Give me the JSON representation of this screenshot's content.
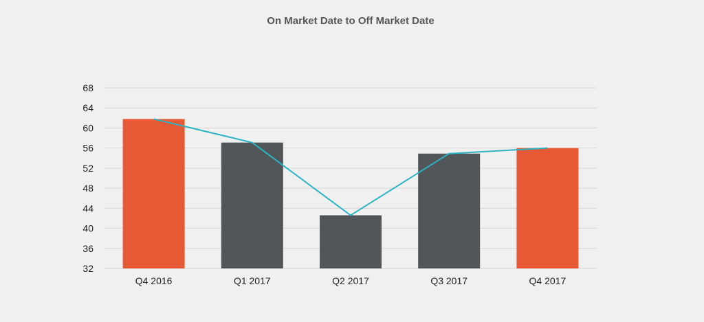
{
  "chart_data": {
    "type": "bar",
    "title": "On Market Date to Off Market Date",
    "categories": [
      "Q4 2016",
      "Q1 2017",
      "Q2 2017",
      "Q3 2017",
      "Q4 2017"
    ],
    "values": [
      61.8,
      57.1,
      42.6,
      54.9,
      56.0
    ],
    "line_values": [
      61.8,
      57.1,
      42.6,
      54.9,
      56.0
    ],
    "ylim": [
      32,
      68
    ],
    "yticks": [
      "68",
      "64",
      "60",
      "56",
      "52",
      "48",
      "44",
      "40",
      "36",
      "32"
    ],
    "grid": true,
    "colors": {
      "highlight_bar": "#e55934",
      "regular_bar": "#525659",
      "line": "#2bb3c3",
      "grid": "#d6d6d6"
    },
    "highlighted": [
      true,
      false,
      false,
      false,
      true
    ]
  }
}
